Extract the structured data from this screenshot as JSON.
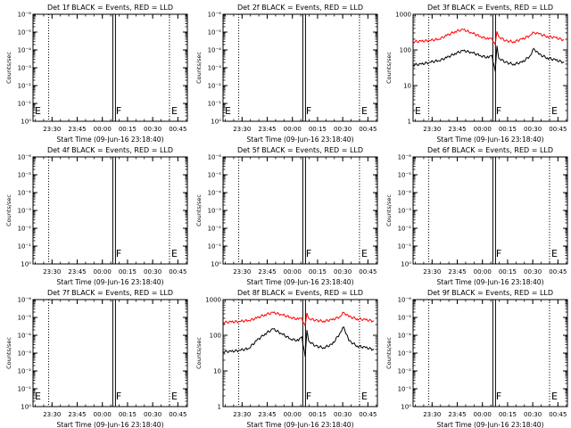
{
  "chart_data": [
    {
      "type": "line",
      "title": "Det 1f BLACK = Events, RED = LLD",
      "xlabel": "Start Time (09-Jun-16 23:18:40)",
      "ylabel": "Counts/sec",
      "x_ticks": [
        "23:30",
        "23:45",
        "00:00",
        "00:15",
        "00:30",
        "00:45"
      ],
      "y_scale": "log",
      "y_ticks": [
        "10⁰",
        "10⁻¹",
        "10⁻²",
        "10⁻³",
        "10⁻⁴",
        "10⁻⁵",
        "10⁻⁶"
      ],
      "dotted_lines_at": [
        "23:28",
        "00:40"
      ],
      "solid_lines_at": [
        "00:07"
      ],
      "region_labels": [
        {
          "text": "E",
          "at": "23:18"
        },
        {
          "text": "F",
          "at": "00:07"
        },
        {
          "text": "E",
          "at": "00:40"
        }
      ],
      "series": [],
      "grid": false,
      "legend": "none"
    },
    {
      "type": "line",
      "title": "Det 2f BLACK = Events, RED = LLD",
      "xlabel": "Start Time (09-Jun-16 23:18:40)",
      "ylabel": "Counts/sec",
      "x_ticks": [
        "23:30",
        "23:45",
        "00:00",
        "00:15",
        "00:30",
        "00:45"
      ],
      "y_scale": "log",
      "y_ticks": [
        "10⁰",
        "10⁻¹",
        "10⁻²",
        "10⁻³",
        "10⁻⁴",
        "10⁻⁵",
        "10⁻⁶"
      ],
      "dotted_lines_at": [
        "23:28",
        "00:40"
      ],
      "solid_lines_at": [
        "00:07"
      ],
      "region_labels": [
        {
          "text": "E",
          "at": "23:18"
        },
        {
          "text": "F",
          "at": "00:07"
        },
        {
          "text": "E",
          "at": "00:40"
        }
      ],
      "series": [],
      "grid": false,
      "legend": "none"
    },
    {
      "type": "line",
      "title": "Det 3f BLACK = Events, RED = LLD",
      "xlabel": "Start Time (09-Jun-16 23:18:40)",
      "ylabel": "Counts/sec",
      "x_ticks": [
        "23:30",
        "23:45",
        "00:00",
        "00:15",
        "00:30",
        "00:45"
      ],
      "y_scale": "log",
      "y_ticks": [
        "1000",
        "100",
        "10",
        "1"
      ],
      "ylim": [
        1,
        1000
      ],
      "dotted_lines_at": [
        "23:28",
        "00:40"
      ],
      "solid_lines_at": [
        "00:07"
      ],
      "region_labels": [
        {
          "text": "E",
          "at": "23:18"
        },
        {
          "text": "F",
          "at": "00:07"
        },
        {
          "text": "E",
          "at": "00:40"
        }
      ],
      "series": [
        {
          "color": "#ff0000",
          "x": [
            0,
            5,
            10,
            15,
            20,
            25,
            30,
            35,
            40,
            45,
            47,
            49,
            50,
            51,
            55,
            60,
            65,
            70,
            72,
            75,
            80,
            85,
            90
          ],
          "y": [
            170,
            175,
            185,
            200,
            250,
            330,
            370,
            300,
            240,
            200,
            210,
            140,
            330,
            240,
            180,
            170,
            200,
            260,
            310,
            280,
            240,
            220,
            190
          ]
        },
        {
          "color": "#000000",
          "x": [
            0,
            5,
            10,
            15,
            20,
            25,
            30,
            35,
            40,
            45,
            47,
            49,
            50,
            51,
            55,
            60,
            65,
            70,
            72,
            75,
            80,
            85,
            90
          ],
          "y": [
            38,
            40,
            45,
            50,
            60,
            80,
            95,
            85,
            70,
            60,
            70,
            25,
            130,
            60,
            45,
            40,
            45,
            70,
            110,
            75,
            60,
            52,
            45
          ]
        }
      ],
      "grid": false,
      "legend": "none"
    },
    {
      "type": "line",
      "title": "Det 4f BLACK = Events, RED = LLD",
      "xlabel": "Start Time (09-Jun-16 23:18:40)",
      "ylabel": "Counts/sec",
      "x_ticks": [
        "23:30",
        "23:45",
        "00:00",
        "00:15",
        "00:30",
        "00:45"
      ],
      "y_scale": "log",
      "y_ticks": [
        "10⁰",
        "10⁻¹",
        "10⁻²",
        "10⁻³",
        "10⁻⁴",
        "10⁻⁵",
        "10⁻⁶"
      ],
      "dotted_lines_at": [
        "23:28",
        "00:40"
      ],
      "solid_lines_at": [
        "00:07"
      ],
      "region_labels": [
        {
          "text": "F",
          "at": "00:07"
        },
        {
          "text": "E",
          "at": "00:40"
        }
      ],
      "series": [],
      "grid": false,
      "legend": "none"
    },
    {
      "type": "line",
      "title": "Det 5f BLACK = Events, RED = LLD",
      "xlabel": "Start Time (09-Jun-16 23:18:40)",
      "ylabel": "Counts/sec",
      "x_ticks": [
        "23:30",
        "23:45",
        "00:00",
        "00:15",
        "00:30",
        "00:45"
      ],
      "y_scale": "log",
      "y_ticks": [
        "10⁰",
        "10⁻¹",
        "10⁻²",
        "10⁻³",
        "10⁻⁴",
        "10⁻⁵",
        "10⁻⁶"
      ],
      "dotted_lines_at": [
        "23:28",
        "00:40"
      ],
      "solid_lines_at": [
        "00:07"
      ],
      "region_labels": [
        {
          "text": "F",
          "at": "00:07"
        },
        {
          "text": "E",
          "at": "00:40"
        }
      ],
      "series": [],
      "grid": false,
      "legend": "none"
    },
    {
      "type": "line",
      "title": "Det 6f BLACK = Events, RED = LLD",
      "xlabel": "Start Time (09-Jun-16 23:18:40)",
      "ylabel": "Counts/sec",
      "x_ticks": [
        "23:30",
        "23:45",
        "00:00",
        "00:15",
        "00:30",
        "00:45"
      ],
      "y_scale": "log",
      "y_ticks": [
        "10⁰",
        "10⁻¹",
        "10⁻²",
        "10⁻³",
        "10⁻⁴",
        "10⁻⁵",
        "10⁻⁶"
      ],
      "dotted_lines_at": [
        "23:28",
        "00:40"
      ],
      "solid_lines_at": [
        "00:07"
      ],
      "region_labels": [
        {
          "text": "F",
          "at": "00:07"
        },
        {
          "text": "E",
          "at": "00:40"
        }
      ],
      "series": [],
      "grid": false,
      "legend": "none"
    },
    {
      "type": "line",
      "title": "Det 7f BLACK = Events, RED = LLD",
      "xlabel": "Start Time (09-Jun-16 23:18:40)",
      "ylabel": "Counts/sec",
      "x_ticks": [
        "23:30",
        "23:45",
        "00:00",
        "00:15",
        "00:30",
        "00:45"
      ],
      "y_scale": "log",
      "y_ticks": [
        "10⁰",
        "10⁻¹",
        "10⁻²",
        "10⁻³",
        "10⁻⁴",
        "10⁻⁵",
        "10⁻⁶"
      ],
      "dotted_lines_at": [
        "23:28",
        "00:40"
      ],
      "solid_lines_at": [
        "00:07"
      ],
      "region_labels": [
        {
          "text": "E",
          "at": "23:18"
        },
        {
          "text": "F",
          "at": "00:07"
        },
        {
          "text": "E",
          "at": "00:40"
        }
      ],
      "series": [],
      "grid": false,
      "legend": "none"
    },
    {
      "type": "line",
      "title": "Det 8f BLACK = Events, RED = LLD",
      "xlabel": "Start Time (09-Jun-16 23:18:40)",
      "ylabel": "Counts/sec",
      "x_ticks": [
        "23:30",
        "23:45",
        "00:00",
        "00:15",
        "00:30",
        "00:45"
      ],
      "y_scale": "log",
      "y_ticks": [
        "1000",
        "100",
        "10",
        "1"
      ],
      "ylim": [
        1,
        1000
      ],
      "dotted_lines_at": [
        "23:28",
        "00:40"
      ],
      "solid_lines_at": [
        "00:07"
      ],
      "region_labels": [
        {
          "text": "F",
          "at": "00:07"
        },
        {
          "text": "E",
          "at": "00:40"
        }
      ],
      "series": [
        {
          "color": "#ff0000",
          "x": [
            0,
            5,
            10,
            15,
            20,
            25,
            30,
            35,
            40,
            45,
            47,
            49,
            50,
            51,
            55,
            60,
            65,
            70,
            72,
            75,
            80,
            85,
            90
          ],
          "y": [
            230,
            235,
            245,
            260,
            300,
            380,
            430,
            380,
            320,
            280,
            300,
            180,
            420,
            300,
            260,
            250,
            270,
            340,
            440,
            330,
            290,
            270,
            250
          ]
        },
        {
          "color": "#000000",
          "x": [
            0,
            5,
            10,
            15,
            20,
            25,
            30,
            35,
            40,
            45,
            47,
            49,
            50,
            51,
            55,
            60,
            65,
            70,
            72,
            75,
            80,
            85,
            90
          ],
          "y": [
            35,
            35,
            38,
            42,
            70,
            110,
            150,
            110,
            80,
            70,
            90,
            25,
            140,
            70,
            50,
            45,
            55,
            120,
            170,
            70,
            50,
            45,
            40
          ]
        }
      ],
      "grid": false,
      "legend": "none"
    },
    {
      "type": "line",
      "title": "Det 9f BLACK = Events, RED = LLD",
      "xlabel": "Start Time (09-Jun-16 23:18:40)",
      "ylabel": "Counts/sec",
      "x_ticks": [
        "23:30",
        "23:45",
        "00:00",
        "00:15",
        "00:30",
        "00:45"
      ],
      "y_scale": "log",
      "y_ticks": [
        "10⁰",
        "10⁻¹",
        "10⁻²",
        "10⁻³",
        "10⁻⁴",
        "10⁻⁵",
        "10⁻⁶"
      ],
      "dotted_lines_at": [
        "23:28",
        "00:40"
      ],
      "solid_lines_at": [
        "00:07"
      ],
      "region_labels": [
        {
          "text": "F",
          "at": "00:07"
        },
        {
          "text": "E",
          "at": "00:40"
        }
      ],
      "series": [],
      "grid": false,
      "legend": "none"
    }
  ]
}
